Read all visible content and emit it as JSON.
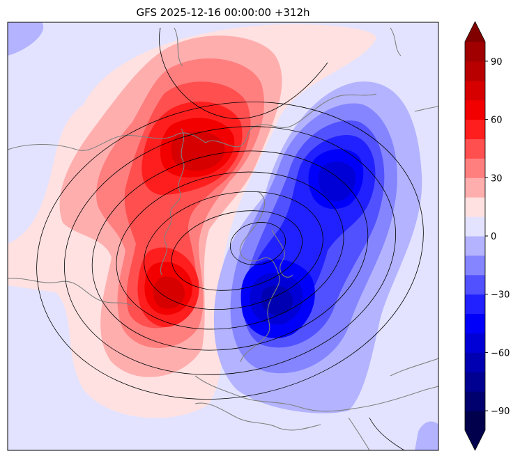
{
  "chart_data": {
    "type": "contourf-map",
    "title": "GFS 2025-12-16 00:00:00 +312h",
    "field": "anomaly (filled) with black isolines and grey coastlines",
    "colorbar": {
      "min": -100,
      "max": 100,
      "step": 10,
      "ticks": [
        -90,
        -60,
        -30,
        0,
        30,
        60,
        90
      ],
      "tick_labels": [
        "−90",
        "−60",
        "−30",
        "0",
        "30",
        "60",
        "90"
      ],
      "extend": "both",
      "levels": [
        {
          "range": [
            -100,
            -90
          ],
          "color": "#00004c"
        },
        {
          "range": [
            -90,
            -80
          ],
          "color": "#00006e"
        },
        {
          "range": [
            -80,
            -70
          ],
          "color": "#000091"
        },
        {
          "range": [
            -70,
            -60
          ],
          "color": "#0000b3"
        },
        {
          "range": [
            -60,
            -50
          ],
          "color": "#0000d6"
        },
        {
          "range": [
            -50,
            -40
          ],
          "color": "#0000fa"
        },
        {
          "range": [
            -40,
            -30
          ],
          "color": "#2121ff"
        },
        {
          "range": [
            -30,
            -20
          ],
          "color": "#5151ff"
        },
        {
          "range": [
            -20,
            -10
          ],
          "color": "#8585ff"
        },
        {
          "range": [
            -10,
            0
          ],
          "color": "#b3b3ff"
        },
        {
          "range": [
            0,
            10
          ],
          "color": "#e3e3ff"
        },
        {
          "range": [
            10,
            20
          ],
          "color": "#ffe1e1"
        },
        {
          "range": [
            20,
            30
          ],
          "color": "#ffaeae"
        },
        {
          "range": [
            30,
            40
          ],
          "color": "#ff7f7f"
        },
        {
          "range": [
            40,
            50
          ],
          "color": "#ff4f4f"
        },
        {
          "range": [
            50,
            60
          ],
          "color": "#ff1e1e"
        },
        {
          "range": [
            60,
            70
          ],
          "color": "#f20000"
        },
        {
          "range": [
            70,
            80
          ],
          "color": "#d60000"
        },
        {
          "range": [
            80,
            90
          ],
          "color": "#b80000"
        },
        {
          "range": [
            90,
            100
          ],
          "color": "#a00000"
        }
      ],
      "extend_colors": {
        "under": "#00004c",
        "over": "#800000"
      }
    },
    "anomaly_centres": [
      {
        "name": "north-red-max",
        "sign": "positive",
        "peak": 65
      },
      {
        "name": "south-red-max",
        "sign": "positive",
        "peak": 65
      },
      {
        "name": "east-blue-min",
        "sign": "negative",
        "peak": -55
      },
      {
        "name": "south-blue-min",
        "sign": "negative",
        "peak": -60
      }
    ]
  }
}
